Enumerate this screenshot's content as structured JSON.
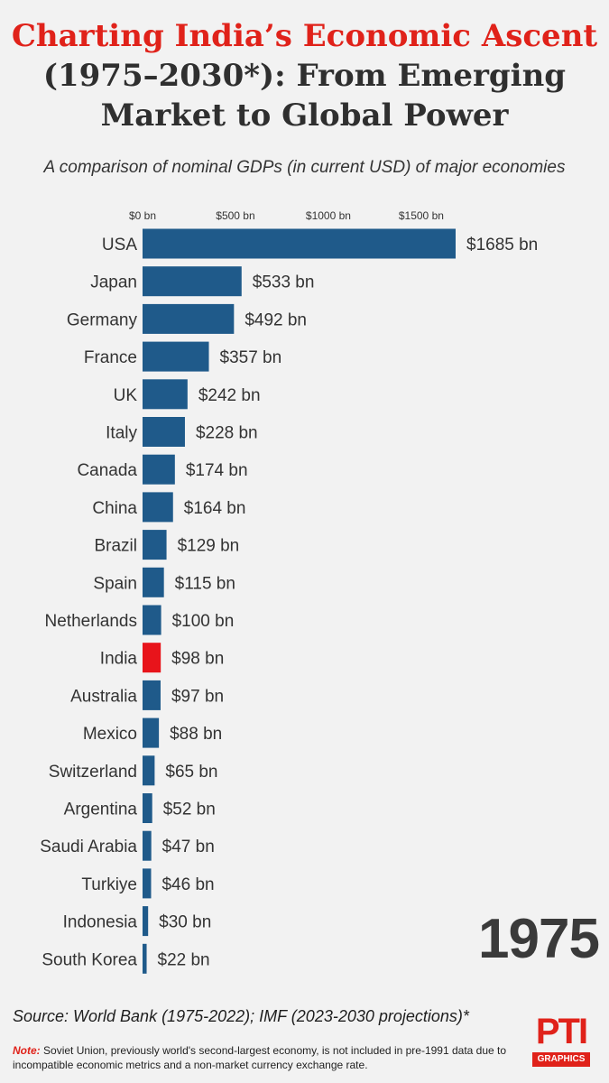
{
  "title": {
    "line1": "Charting India’s Economic Ascent",
    "line2": "(1975–2030*): From Emerging",
    "line3": "Market to Global Power"
  },
  "subtitle": "A comparison of nominal GDPs (in current USD) of major economies",
  "year": "1975",
  "source": "Source: World Bank (1975-2022); IMF (2023-2030 projections)*",
  "note": {
    "label": "Note:",
    "text": "Soviet Union, previously world's second-largest economy, is not included in pre-1991 data due to incompatible economic metrics and a non-market currency exchange rate."
  },
  "logo": {
    "mark": "PTI",
    "sub": "GRAPHICS"
  },
  "colors": {
    "bar": "#1f5a8a",
    "highlight": "#e8141b",
    "title_accent": "#e0221a"
  },
  "chart_data": {
    "type": "bar",
    "orientation": "horizontal",
    "unit": "$bn",
    "x_ticks": [
      "$0 bn",
      "$500 bn",
      "$1000 bn",
      "$1500 bn"
    ],
    "x_tick_values": [
      0,
      500,
      1000,
      1500
    ],
    "xlim": [
      0,
      1700
    ],
    "highlight": "India",
    "categories": [
      "USA",
      "Japan",
      "Germany",
      "France",
      "UK",
      "Italy",
      "Canada",
      "China",
      "Brazil",
      "Spain",
      "Netherlands",
      "India",
      "Australia",
      "Mexico",
      "Switzerland",
      "Argentina",
      "Saudi Arabia",
      "Turkiye",
      "Indonesia",
      "South Korea"
    ],
    "values": [
      1685,
      533,
      492,
      357,
      242,
      228,
      174,
      164,
      129,
      115,
      100,
      98,
      97,
      88,
      65,
      52,
      47,
      46,
      30,
      22
    ],
    "value_labels": [
      "$1685 bn",
      "$533 bn",
      "$492 bn",
      "$357 bn",
      "$242 bn",
      "$228 bn",
      "$174 bn",
      "$164 bn",
      "$129 bn",
      "$115 bn",
      "$100 bn",
      "$98 bn",
      "$97 bn",
      "$88 bn",
      "$65 bn",
      "$52 bn",
      "$47 bn",
      "$46 bn",
      "$30 bn",
      "$22 bn"
    ]
  }
}
